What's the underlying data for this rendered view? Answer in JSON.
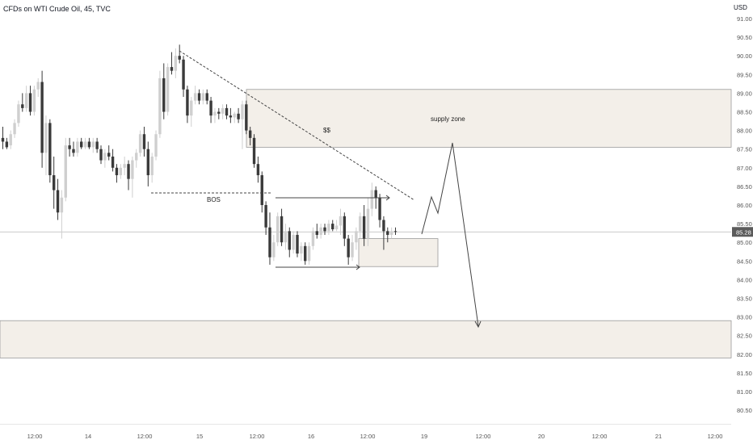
{
  "header": {
    "title": "CFDs on WTI Crude Oil, 45, TVC",
    "currency": "USD"
  },
  "chart_data": {
    "type": "candlestick",
    "title": "CFDs on WTI Crude Oil, 45, TVC",
    "ylim": [
      80.3,
      91.4
    ],
    "y_ticks": [
      91.0,
      90.5,
      90.0,
      89.5,
      89.0,
      88.5,
      88.0,
      87.5,
      87.0,
      86.5,
      86.0,
      85.5,
      85.0,
      84.5,
      84.0,
      83.5,
      83.0,
      82.5,
      82.0,
      81.5,
      81.0,
      80.5
    ],
    "x_labels": [
      "12:00",
      "14",
      "12:00",
      "15",
      "12:00",
      "16",
      "12:00",
      "19",
      "12:00",
      "20",
      "12:00",
      "21",
      "12:00"
    ],
    "last_price": "85.28",
    "colors": {
      "up": "#cfcfcf",
      "down": "#3a3a3a",
      "zone_fill": "#f3efe9",
      "zone_edge": "#9a9a9a",
      "annotation": "#444444",
      "axis_text": "#555555"
    },
    "candles": [
      {
        "o": 87.8,
        "h": 88.1,
        "l": 87.5,
        "c": 87.7
      },
      {
        "o": 87.7,
        "h": 87.8,
        "l": 87.5,
        "c": 87.55
      },
      {
        "o": 87.6,
        "h": 88.0,
        "l": 87.5,
        "c": 87.9
      },
      {
        "o": 87.9,
        "h": 88.3,
        "l": 87.8,
        "c": 88.2
      },
      {
        "o": 88.2,
        "h": 88.8,
        "l": 88.1,
        "c": 88.7
      },
      {
        "o": 88.7,
        "h": 89.0,
        "l": 88.5,
        "c": 88.6
      },
      {
        "o": 88.6,
        "h": 89.2,
        "l": 88.5,
        "c": 89.0
      },
      {
        "o": 89.0,
        "h": 89.2,
        "l": 88.4,
        "c": 88.5
      },
      {
        "o": 88.5,
        "h": 89.2,
        "l": 88.4,
        "c": 89.1
      },
      {
        "o": 89.1,
        "h": 89.4,
        "l": 88.9,
        "c": 89.3
      },
      {
        "o": 89.3,
        "h": 89.6,
        "l": 87.0,
        "c": 87.4
      },
      {
        "o": 87.4,
        "h": 88.4,
        "l": 86.8,
        "c": 88.2
      },
      {
        "o": 88.2,
        "h": 88.3,
        "l": 86.6,
        "c": 86.8
      },
      {
        "o": 86.8,
        "h": 87.3,
        "l": 85.9,
        "c": 86.4
      },
      {
        "o": 86.4,
        "h": 86.7,
        "l": 85.6,
        "c": 85.8
      },
      {
        "o": 85.8,
        "h": 86.4,
        "l": 85.1,
        "c": 86.2
      },
      {
        "o": 86.2,
        "h": 87.8,
        "l": 86.1,
        "c": 87.6
      },
      {
        "o": 87.6,
        "h": 87.8,
        "l": 87.3,
        "c": 87.5
      },
      {
        "o": 87.5,
        "h": 87.7,
        "l": 87.3,
        "c": 87.4
      },
      {
        "o": 87.4,
        "h": 87.8,
        "l": 87.3,
        "c": 87.7
      },
      {
        "o": 87.7,
        "h": 87.8,
        "l": 87.5,
        "c": 87.55
      },
      {
        "o": 87.55,
        "h": 87.8,
        "l": 87.5,
        "c": 87.7
      },
      {
        "o": 87.7,
        "h": 87.8,
        "l": 87.5,
        "c": 87.55
      },
      {
        "o": 87.55,
        "h": 87.8,
        "l": 87.4,
        "c": 87.7
      },
      {
        "o": 87.7,
        "h": 87.8,
        "l": 87.4,
        "c": 87.5
      },
      {
        "o": 87.5,
        "h": 87.6,
        "l": 87.1,
        "c": 87.2
      },
      {
        "o": 87.2,
        "h": 87.5,
        "l": 87.0,
        "c": 87.4
      },
      {
        "o": 87.4,
        "h": 87.6,
        "l": 87.2,
        "c": 87.3
      },
      {
        "o": 87.3,
        "h": 87.5,
        "l": 86.9,
        "c": 87.0
      },
      {
        "o": 87.0,
        "h": 87.1,
        "l": 86.6,
        "c": 86.8
      },
      {
        "o": 86.8,
        "h": 87.1,
        "l": 86.7,
        "c": 87.0
      },
      {
        "o": 87.0,
        "h": 87.3,
        "l": 86.8,
        "c": 87.1
      },
      {
        "o": 87.1,
        "h": 87.2,
        "l": 86.4,
        "c": 86.7
      },
      {
        "o": 86.7,
        "h": 87.3,
        "l": 86.2,
        "c": 87.2
      },
      {
        "o": 87.2,
        "h": 87.5,
        "l": 87.0,
        "c": 87.4
      },
      {
        "o": 87.4,
        "h": 88.0,
        "l": 87.3,
        "c": 87.9
      },
      {
        "o": 87.9,
        "h": 88.1,
        "l": 87.3,
        "c": 87.5
      },
      {
        "o": 87.5,
        "h": 87.7,
        "l": 86.5,
        "c": 86.8
      },
      {
        "o": 86.8,
        "h": 87.4,
        "l": 86.6,
        "c": 87.3
      },
      {
        "o": 87.3,
        "h": 88.0,
        "l": 87.2,
        "c": 87.9
      },
      {
        "o": 87.9,
        "h": 89.6,
        "l": 87.8,
        "c": 89.4
      },
      {
        "o": 89.4,
        "h": 89.8,
        "l": 88.3,
        "c": 88.5
      },
      {
        "o": 88.5,
        "h": 89.8,
        "l": 88.4,
        "c": 89.7
      },
      {
        "o": 89.7,
        "h": 90.1,
        "l": 89.5,
        "c": 89.6
      },
      {
        "o": 89.6,
        "h": 90.2,
        "l": 89.4,
        "c": 90.0
      },
      {
        "o": 90.0,
        "h": 90.3,
        "l": 89.8,
        "c": 89.9
      },
      {
        "o": 89.9,
        "h": 90.0,
        "l": 88.9,
        "c": 89.1
      },
      {
        "o": 89.1,
        "h": 89.2,
        "l": 88.2,
        "c": 88.4
      },
      {
        "o": 88.4,
        "h": 88.9,
        "l": 88.1,
        "c": 88.8
      },
      {
        "o": 88.8,
        "h": 89.2,
        "l": 88.7,
        "c": 89.0
      },
      {
        "o": 89.0,
        "h": 89.1,
        "l": 88.7,
        "c": 88.8
      },
      {
        "o": 88.8,
        "h": 89.1,
        "l": 88.7,
        "c": 89.0
      },
      {
        "o": 89.0,
        "h": 89.1,
        "l": 88.7,
        "c": 88.8
      },
      {
        "o": 88.8,
        "h": 88.9,
        "l": 88.2,
        "c": 88.4
      },
      {
        "o": 88.4,
        "h": 88.6,
        "l": 88.2,
        "c": 88.5
      },
      {
        "o": 88.5,
        "h": 88.6,
        "l": 88.3,
        "c": 88.45
      },
      {
        "o": 88.45,
        "h": 88.7,
        "l": 88.3,
        "c": 88.6
      },
      {
        "o": 88.6,
        "h": 88.7,
        "l": 88.3,
        "c": 88.4
      },
      {
        "o": 88.4,
        "h": 88.6,
        "l": 88.2,
        "c": 88.35
      },
      {
        "o": 88.35,
        "h": 88.5,
        "l": 88.2,
        "c": 88.45
      },
      {
        "o": 88.45,
        "h": 88.6,
        "l": 88.2,
        "c": 88.3
      },
      {
        "o": 88.3,
        "h": 88.8,
        "l": 87.5,
        "c": 88.7
      },
      {
        "o": 88.7,
        "h": 88.8,
        "l": 87.9,
        "c": 88.0
      },
      {
        "o": 88.0,
        "h": 88.1,
        "l": 87.6,
        "c": 87.8
      },
      {
        "o": 87.8,
        "h": 87.9,
        "l": 87.0,
        "c": 87.1
      },
      {
        "o": 87.1,
        "h": 87.3,
        "l": 86.6,
        "c": 86.8
      },
      {
        "o": 86.8,
        "h": 86.9,
        "l": 85.8,
        "c": 86.0
      },
      {
        "o": 86.0,
        "h": 86.1,
        "l": 85.2,
        "c": 85.4
      },
      {
        "o": 85.4,
        "h": 85.8,
        "l": 84.4,
        "c": 84.6
      },
      {
        "o": 84.6,
        "h": 85.2,
        "l": 84.5,
        "c": 85.0
      },
      {
        "o": 85.0,
        "h": 85.8,
        "l": 84.9,
        "c": 85.7
      },
      {
        "o": 85.7,
        "h": 85.9,
        "l": 84.9,
        "c": 85.0
      },
      {
        "o": 85.0,
        "h": 85.5,
        "l": 84.8,
        "c": 85.3
      },
      {
        "o": 85.3,
        "h": 85.4,
        "l": 84.6,
        "c": 84.8
      },
      {
        "o": 84.8,
        "h": 85.3,
        "l": 84.7,
        "c": 85.2
      },
      {
        "o": 85.2,
        "h": 85.3,
        "l": 84.6,
        "c": 84.7
      },
      {
        "o": 84.7,
        "h": 85.0,
        "l": 84.5,
        "c": 84.9
      },
      {
        "o": 84.9,
        "h": 85.0,
        "l": 84.4,
        "c": 84.5
      },
      {
        "o": 84.5,
        "h": 85.0,
        "l": 84.4,
        "c": 84.9
      },
      {
        "o": 84.9,
        "h": 85.4,
        "l": 84.8,
        "c": 85.3
      },
      {
        "o": 85.3,
        "h": 85.5,
        "l": 85.1,
        "c": 85.2
      },
      {
        "o": 85.2,
        "h": 85.5,
        "l": 85.1,
        "c": 85.4
      },
      {
        "o": 85.4,
        "h": 85.5,
        "l": 85.2,
        "c": 85.3
      },
      {
        "o": 85.3,
        "h": 85.6,
        "l": 85.2,
        "c": 85.5
      },
      {
        "o": 85.5,
        "h": 85.6,
        "l": 85.3,
        "c": 85.35
      },
      {
        "o": 85.35,
        "h": 85.6,
        "l": 85.3,
        "c": 85.45
      },
      {
        "o": 85.45,
        "h": 85.9,
        "l": 85.2,
        "c": 85.7
      },
      {
        "o": 85.7,
        "h": 85.8,
        "l": 84.9,
        "c": 85.1
      },
      {
        "o": 85.1,
        "h": 85.2,
        "l": 84.4,
        "c": 84.6
      },
      {
        "o": 84.6,
        "h": 85.2,
        "l": 84.5,
        "c": 85.0
      },
      {
        "o": 85.0,
        "h": 85.4,
        "l": 84.8,
        "c": 85.3
      },
      {
        "o": 85.3,
        "h": 85.8,
        "l": 85.1,
        "c": 85.7
      },
      {
        "o": 85.7,
        "h": 86.0,
        "l": 84.9,
        "c": 85.1
      },
      {
        "o": 85.1,
        "h": 86.2,
        "l": 84.9,
        "c": 85.9
      },
      {
        "o": 85.9,
        "h": 86.6,
        "l": 85.7,
        "c": 86.4
      },
      {
        "o": 86.4,
        "h": 86.5,
        "l": 85.9,
        "c": 86.2
      },
      {
        "o": 86.2,
        "h": 86.3,
        "l": 85.4,
        "c": 85.6
      },
      {
        "o": 85.6,
        "h": 85.7,
        "l": 84.8,
        "c": 85.3
      },
      {
        "o": 85.3,
        "h": 85.4,
        "l": 85.0,
        "c": 85.2
      },
      {
        "o": 85.2,
        "h": 85.4,
        "l": 85.1,
        "c": 85.3
      },
      {
        "o": 85.3,
        "h": 85.4,
        "l": 85.2,
        "c": 85.28
      }
    ],
    "zones": [
      {
        "name": "upper",
        "from": 87.55,
        "to": 89.1
      },
      {
        "name": "lower",
        "from": 81.9,
        "to": 82.9
      },
      {
        "name": "entry",
        "from": 84.35,
        "to": 85.1
      }
    ],
    "annotations": [
      {
        "id": "bos",
        "text": "BOS"
      },
      {
        "id": "liquidity",
        "text": "$$"
      },
      {
        "id": "supply",
        "text": "supply zone"
      }
    ]
  }
}
